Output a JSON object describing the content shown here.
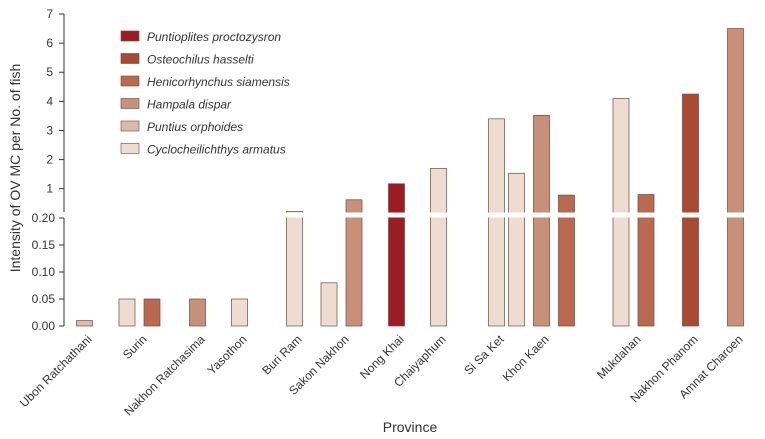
{
  "chart_data": {
    "type": "bar",
    "xlabel": "Province",
    "ylabel": "Intensity of OV MC per No. of fish",
    "broken_axis": {
      "lower_ticks": [
        "0.00",
        "0.05",
        "0.10",
        "0.15",
        "0.20"
      ],
      "lower_range": [
        0,
        0.2
      ],
      "upper_ticks": [
        "1",
        "2",
        "3",
        "4",
        "5",
        "6",
        "7"
      ],
      "upper_range": [
        0.2,
        7
      ]
    },
    "species": [
      {
        "name": "Puntioplites proctozysron",
        "color": "#9b1c22"
      },
      {
        "name": "Osteochilus hasselti",
        "color": "#a94a33"
      },
      {
        "name": "Henicorhynchus siamensis",
        "color": "#b8694f"
      },
      {
        "name": "Hampala dispar",
        "color": "#c99079"
      },
      {
        "name": "Puntius orphoides",
        "color": "#ddb9a7"
      },
      {
        "name": "Cyclocheilichthys armatus",
        "color": "#efdcd1"
      }
    ],
    "categories": [
      "Ubon Ratchathani",
      "Surin",
      "Nakhon Ratchasima",
      "Yasothon",
      "Buri Ram",
      "Sakon Nakhon",
      "Nong Khai",
      "Chaiyaphum",
      "Si Sa Ket",
      "Khon Kaen",
      "Mukdahan",
      "Nakhon Phanom",
      "Amnat Charoen"
    ],
    "bars": [
      {
        "category": "Ubon Ratchathani",
        "species": "Puntius orphoides",
        "value": 0.01
      },
      {
        "category": "Surin",
        "species": "Cyclocheilichthys armatus",
        "value": 0.05
      },
      {
        "category": "Surin",
        "species": "Henicorhynchus siamensis",
        "value": 0.05
      },
      {
        "category": "Nakhon Ratchasima",
        "species": "Hampala dispar",
        "value": 0.05
      },
      {
        "category": "Yasothon",
        "species": "Cyclocheilichthys armatus",
        "value": 0.05
      },
      {
        "category": "Buri Ram",
        "species": "Cyclocheilichthys armatus",
        "value": 0.22
      },
      {
        "category": "Sakon Nakhon",
        "species": "Cyclocheilichthys armatus",
        "value": 0.08
      },
      {
        "category": "Sakon Nakhon",
        "species": "Hampala dispar",
        "value": 0.62
      },
      {
        "category": "Nong Khai",
        "species": "Puntioplites proctozysron",
        "value": 1.17
      },
      {
        "category": "Chaiyaphum",
        "species": "Cyclocheilichthys armatus",
        "value": 1.7
      },
      {
        "category": "Si Sa Ket",
        "species": "Cyclocheilichthys armatus",
        "value": 3.4
      },
      {
        "category": "Khon Kaen",
        "species": "Cyclocheilichthys armatus",
        "value": 1.53
      },
      {
        "category": "Khon Kaen",
        "species": "Hampala dispar",
        "value": 3.52
      },
      {
        "category": "Khon Kaen",
        "species": "Henicorhynchus siamensis",
        "value": 0.78
      },
      {
        "category": "Mukdahan",
        "species": "Cyclocheilichthys armatus",
        "value": 4.1
      },
      {
        "category": "Mukdahan",
        "species": "Henicorhynchus siamensis",
        "value": 0.8
      },
      {
        "category": "Nakhon Phanom",
        "species": "Osteochilus hasselti",
        "value": 4.25
      },
      {
        "category": "Amnat Charoen",
        "species": "Hampala dispar",
        "value": 6.5
      }
    ]
  }
}
